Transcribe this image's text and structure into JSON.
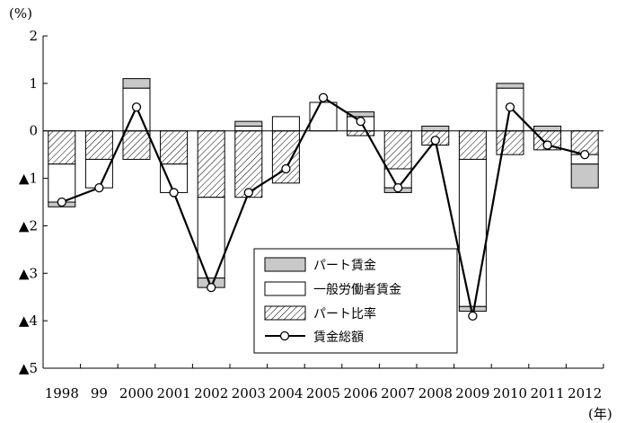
{
  "chart_data": {
    "type": "bar",
    "stacked": true,
    "y_unit_label": "(%)",
    "x_unit_label": "(年)",
    "categories": [
      "1998",
      "99",
      "2000",
      "2001",
      "2002",
      "2003",
      "2004",
      "2005",
      "2006",
      "2007",
      "2008",
      "2009",
      "2010",
      "2011",
      "2012"
    ],
    "y_tick_labels": [
      "2",
      "1",
      "0",
      "▲1",
      "▲2",
      "▲3",
      "▲4",
      "▲5"
    ],
    "y_ticks": [
      2,
      1,
      0,
      -1,
      -2,
      -3,
      -4,
      -5
    ],
    "ylim": [
      -5,
      2
    ],
    "grid": false,
    "legend_position": "lower-center",
    "series": [
      {
        "name": "パート比率",
        "kind": "bar",
        "pattern": "hatch",
        "values": [
          -0.7,
          -0.6,
          -0.6,
          -0.7,
          -1.4,
          -1.4,
          -1.1,
          0,
          -0.1,
          -0.8,
          -0.3,
          -0.6,
          -0.5,
          -0.4,
          -0.5
        ]
      },
      {
        "name": "一般労働者賃金",
        "kind": "bar",
        "color": "#ffffff",
        "values": [
          -0.8,
          -0.6,
          0.9,
          -0.6,
          -1.7,
          0.1,
          0.3,
          0.6,
          0.3,
          -0.4,
          0,
          -3.1,
          0.9,
          0,
          -0.2
        ]
      },
      {
        "name": "パート賃金",
        "kind": "bar",
        "color": "#c8c8c8",
        "values": [
          -0.1,
          0,
          0.2,
          0,
          -0.2,
          0.1,
          0,
          0,
          0.1,
          -0.1,
          0.1,
          -0.1,
          0.1,
          0.1,
          -0.5
        ]
      },
      {
        "name": "賃金総額",
        "kind": "line",
        "values": [
          -1.5,
          -1.2,
          0.5,
          -1.3,
          -3.3,
          -1.3,
          -0.8,
          0.7,
          0.2,
          -1.2,
          -0.2,
          -3.9,
          0.5,
          -0.3,
          -0.5
        ]
      }
    ],
    "legend": [
      "パート賃金",
      "一般労働者賃金",
      "パート比率",
      "賃金総額"
    ]
  }
}
